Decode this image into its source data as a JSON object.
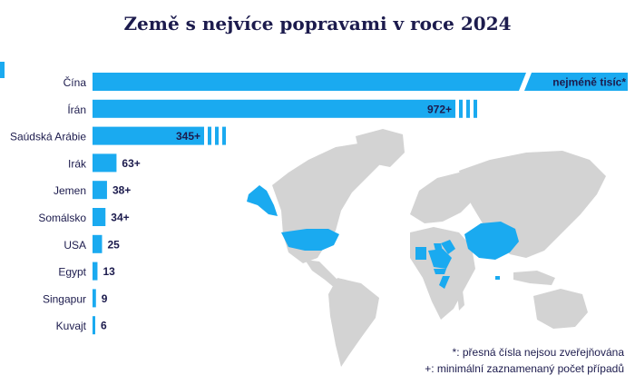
{
  "chart_data": {
    "type": "bar",
    "orientation": "horizontal",
    "title": "Země s nejvíce popravami v roce 2024",
    "categories": [
      "Čína",
      "Írán",
      "Saúdská Arábie",
      "Irák",
      "Jemen",
      "Somálsko",
      "USA",
      "Egypt",
      "Singapur",
      "Kuvajt"
    ],
    "values": [
      null,
      972,
      345,
      63,
      38,
      34,
      25,
      13,
      9,
      6
    ],
    "value_labels": [
      "nejméně tisíc*",
      "972+",
      "345+",
      "63+",
      "38+",
      "34+",
      "25",
      "13",
      "9",
      "6"
    ],
    "truncated_bars": [
      "Čína",
      "Írán",
      "Saúdská Arábie"
    ],
    "bar_color": "#1aaaf0",
    "label_color": "#1c1b4d",
    "map_land_color": "#d3d3d3",
    "highlighted_countries": [
      "Čína",
      "Írán",
      "Saúdská Arábie",
      "Irák",
      "Jemen",
      "Somálsko",
      "USA",
      "Egypt",
      "Singapur",
      "Kuvajt"
    ]
  },
  "footnotes": {
    "asterisk": "*: přesná čísla nejsou zveřejňována",
    "plus": "+: minimální zaznamenaný počet případů"
  }
}
